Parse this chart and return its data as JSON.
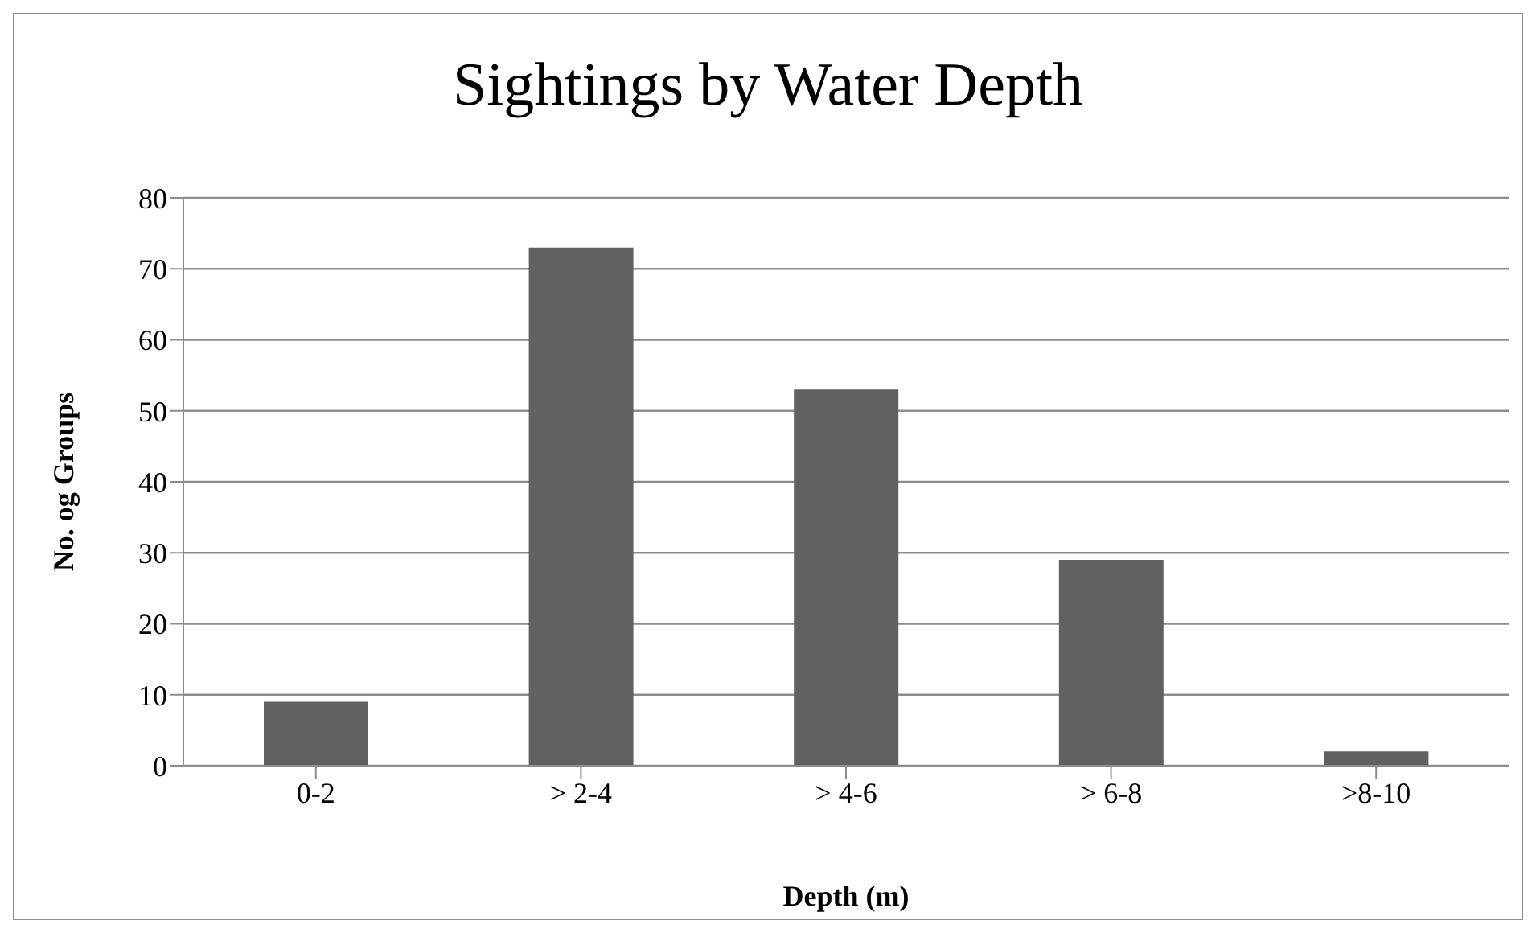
{
  "chart_data": {
    "type": "bar",
    "title": "Sightings by Water Depth",
    "xlabel": "Depth (m)",
    "ylabel": "No. og Groups",
    "categories": [
      "0-2",
      "> 2-4",
      "> 4-6",
      "> 6-8",
      ">8-10"
    ],
    "values": [
      9,
      73,
      53,
      29,
      2
    ],
    "color": "#616161",
    "ylim": [
      0,
      80
    ],
    "yticks": [
      0,
      10,
      20,
      30,
      40,
      50,
      60,
      70,
      80
    ],
    "grid": "y"
  }
}
